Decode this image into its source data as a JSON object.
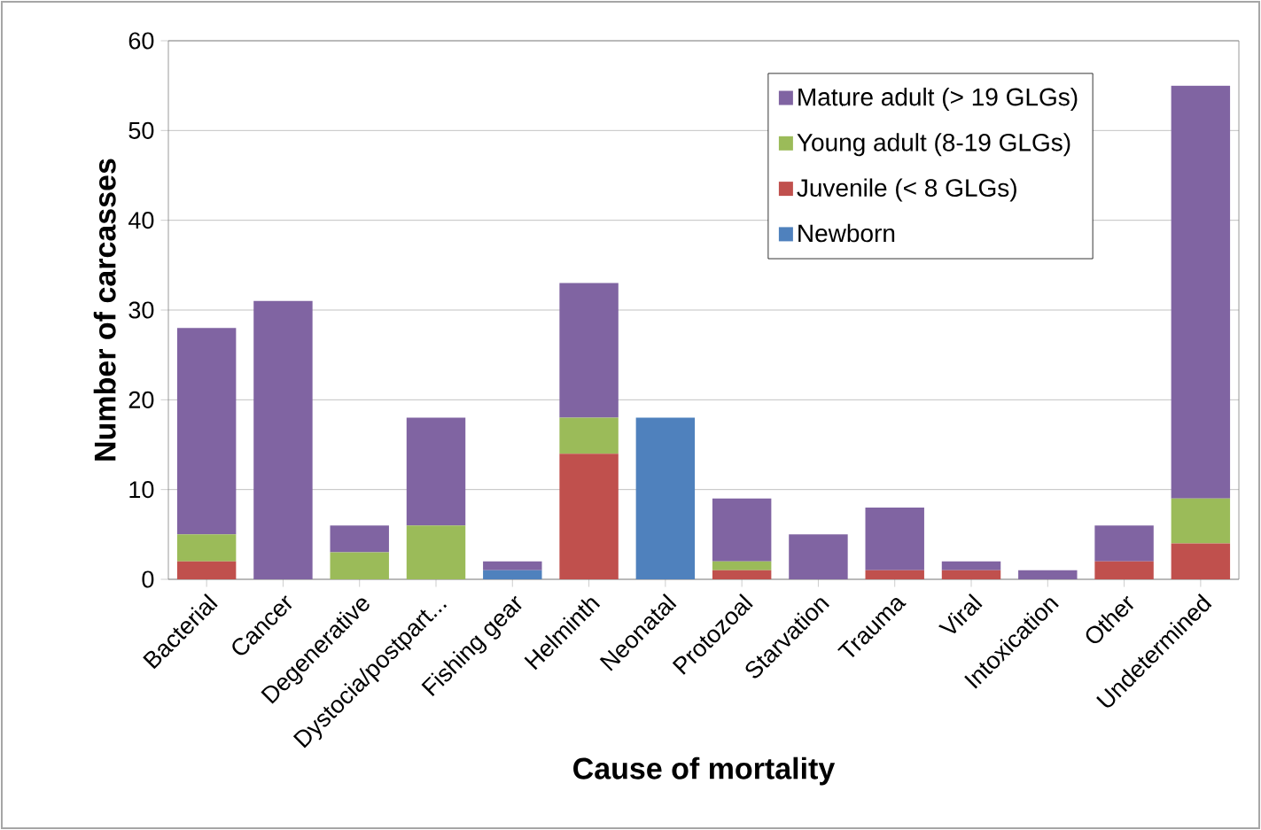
{
  "chart_data": {
    "type": "bar",
    "stacked": true,
    "xlabel": "Cause of mortality",
    "ylabel": "Number of carcasses",
    "categories": [
      "Bacterial",
      "Cancer",
      "Degenerative",
      "Dystocia/postpart...",
      "Fishing gear",
      "Helminth",
      "Neonatal",
      "Protozoal",
      "Starvation",
      "Trauma",
      "Viral",
      "Intoxication",
      "Other",
      "Undetermined"
    ],
    "series": [
      {
        "name": "Newborn",
        "color": "#4f81bd",
        "values": [
          0,
          0,
          0,
          0,
          1,
          0,
          18,
          0,
          0,
          0,
          0,
          0,
          0,
          0
        ]
      },
      {
        "name": "Juvenile (< 8 GLGs)",
        "color": "#c0504d",
        "values": [
          2,
          0,
          0,
          0,
          0,
          14,
          0,
          1,
          0,
          1,
          1,
          0,
          2,
          4
        ]
      },
      {
        "name": "Young adult (8-19 GLGs)",
        "color": "#9bbb59",
        "values": [
          3,
          0,
          3,
          6,
          0,
          4,
          0,
          1,
          0,
          0,
          0,
          0,
          0,
          5
        ]
      },
      {
        "name": "Mature adult (> 19 GLGs)",
        "color": "#8064a2",
        "values": [
          23,
          31,
          3,
          12,
          1,
          15,
          0,
          7,
          5,
          7,
          1,
          1,
          4,
          46
        ]
      }
    ],
    "ylim": [
      0,
      60
    ],
    "yticks": [
      0,
      10,
      20,
      30,
      40,
      50,
      60
    ],
    "grid": "y",
    "legend": "top right"
  }
}
